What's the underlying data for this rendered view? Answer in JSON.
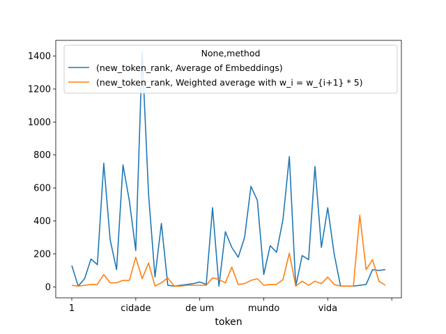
{
  "chart_data": {
    "type": "line",
    "xlabel": "token",
    "ylabel": "",
    "title": "",
    "ylim": [
      -66,
      1495
    ],
    "yticks": [
      0,
      200,
      400,
      600,
      800,
      1000,
      1200,
      1400
    ],
    "xtick_labels": [
      "1",
      "cidade",
      "de um",
      "mundo",
      "vida",
      ""
    ],
    "legend": {
      "title": "None,method",
      "placement": "top-right"
    },
    "series": [
      {
        "name": "(new_token_rank, Average of Embeddings)",
        "color": "#1f77b4",
        "values": [
          130,
          5,
          50,
          170,
          135,
          750,
          285,
          105,
          740,
          520,
          220,
          1420,
          560,
          60,
          385,
          10,
          5,
          10,
          15,
          20,
          30,
          15,
          480,
          5,
          335,
          240,
          180,
          300,
          610,
          525,
          75,
          250,
          210,
          410,
          790,
          5,
          190,
          165,
          730,
          240,
          480,
          200,
          5,
          5,
          5,
          10,
          15,
          105,
          100,
          105
        ]
      },
      {
        "name": "(new_token_rank, Weighted average with w_i = w_{i+1} * 5)",
        "color": "#ff7f0e",
        "values": [
          10,
          5,
          10,
          15,
          15,
          75,
          25,
          25,
          40,
          40,
          180,
          50,
          145,
          5,
          25,
          55,
          5,
          5,
          10,
          10,
          10,
          10,
          55,
          45,
          25,
          120,
          15,
          20,
          40,
          50,
          10,
          15,
          15,
          45,
          205,
          5,
          35,
          10,
          35,
          20,
          60,
          15,
          5,
          5,
          5,
          435,
          105,
          165,
          35,
          10
        ]
      }
    ]
  }
}
